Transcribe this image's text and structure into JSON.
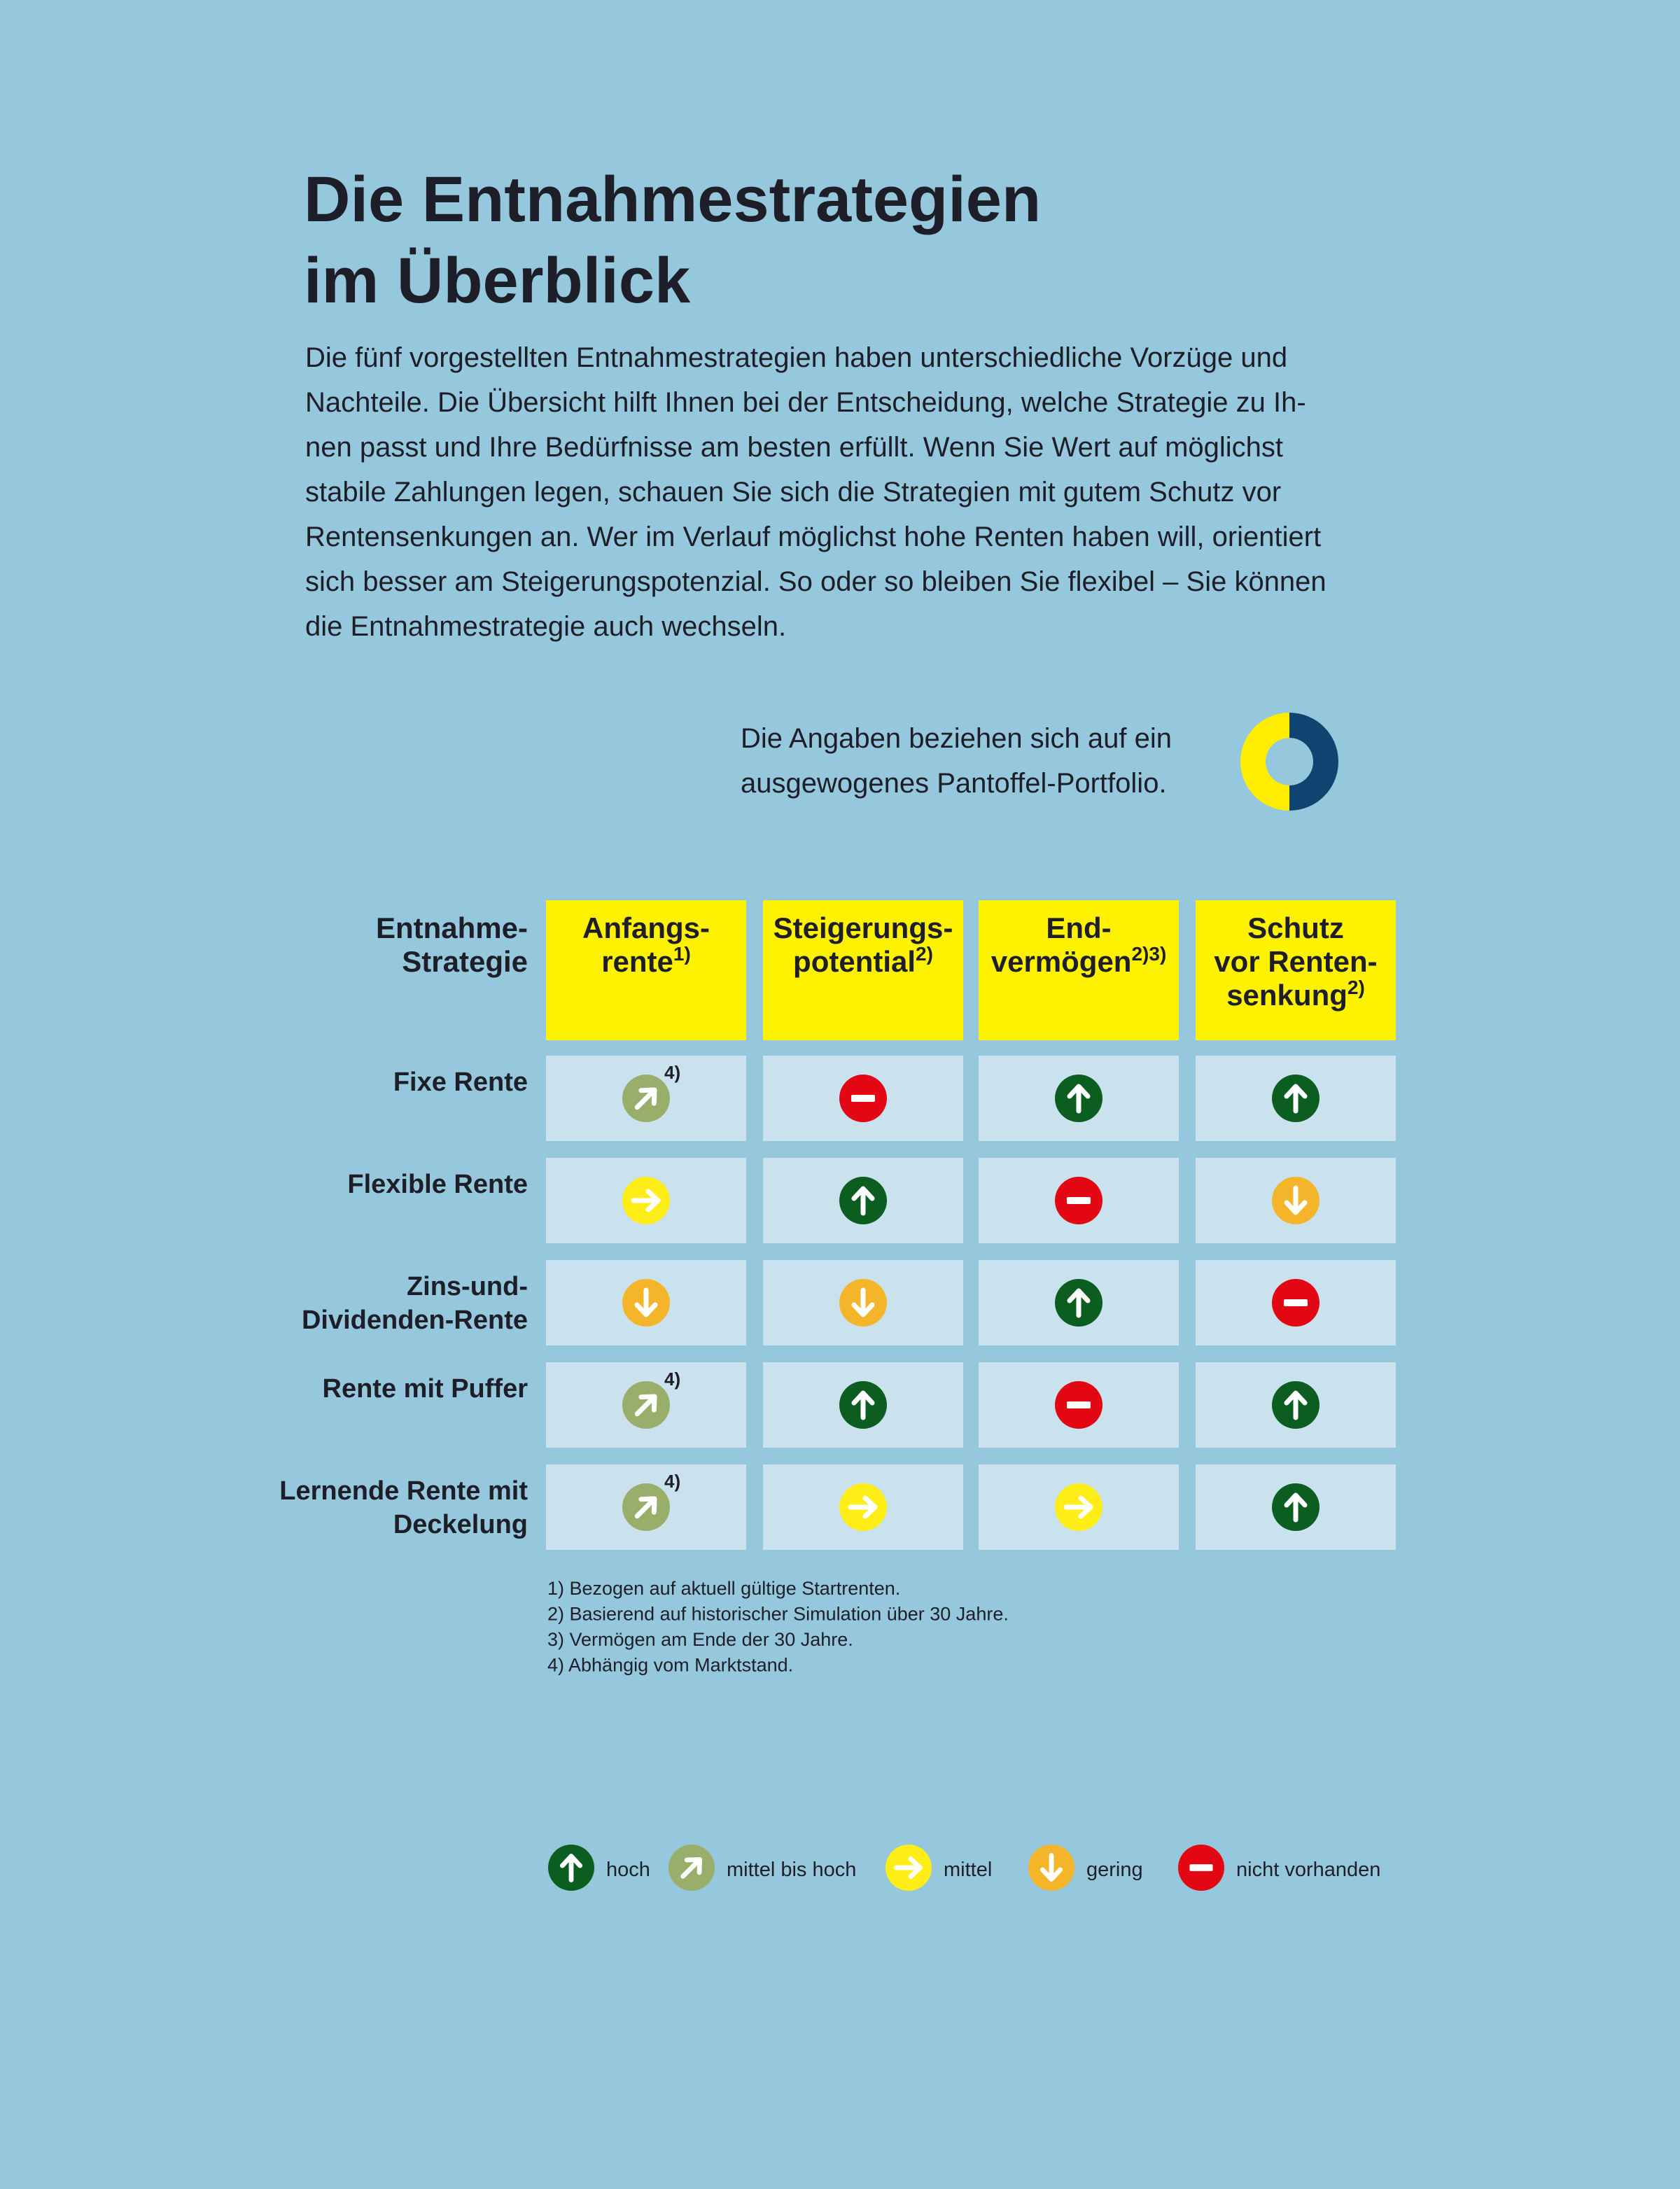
{
  "header": {
    "title": [
      "Die Entnahmestrategien",
      "im Überblick"
    ],
    "paragraph": [
      "Die fünf vorgestellten Entnahmestrategien haben unterschiedliche Vorzüge und",
      "Nachteile. Die Übersicht hilft Ihnen bei der Entscheidung, welche Strategie zu Ih-",
      "nen passt und Ihre Bedürfnisse am besten erfüllt. Wenn Sie Wert auf möglichst",
      "stabile Zahlungen legen, schauen Sie sich die Strategien mit gutem Schutz vor",
      "Rentensenkungen an. Wer im Verlauf möglichst hohe Renten haben will, orientiert",
      "sich besser am Steigerungspotenzial. So oder so bleiben Sie flexibel – Sie können",
      "die Entnahmestrategie auch wechseln."
    ],
    "note": [
      "Die Angaben beziehen sich auf ein",
      "ausgewogenes Pantoffel-Portfolio."
    ]
  },
  "table": {
    "corner": [
      "Entnahme-",
      "Strategie"
    ],
    "columns": [
      {
        "lines": [
          "Anfangs-",
          "rente"
        ],
        "sup": "1)"
      },
      {
        "lines": [
          "Steigerungs-",
          "potential"
        ],
        "sup": "2)"
      },
      {
        "lines": [
          "End-",
          "vermögen"
        ],
        "sup": "2)3)"
      },
      {
        "lines": [
          "Schutz",
          "vor Renten-",
          "senkung"
        ],
        "sup": "2)"
      }
    ],
    "rows": [
      {
        "label": [
          "Fixe Rente"
        ],
        "cells": [
          {
            "rating": "mittel bis hoch",
            "note": "4)"
          },
          {
            "rating": "nicht vorhanden"
          },
          {
            "rating": "hoch"
          },
          {
            "rating": "hoch"
          }
        ]
      },
      {
        "label": [
          "Flexible Rente"
        ],
        "cells": [
          {
            "rating": "mittel"
          },
          {
            "rating": "hoch"
          },
          {
            "rating": "nicht vorhanden"
          },
          {
            "rating": "gering"
          }
        ]
      },
      {
        "label": [
          "Zins-und-",
          "Dividenden-Rente"
        ],
        "cells": [
          {
            "rating": "gering"
          },
          {
            "rating": "gering"
          },
          {
            "rating": "hoch"
          },
          {
            "rating": "nicht vorhanden"
          }
        ]
      },
      {
        "label": [
          "Rente mit Puffer"
        ],
        "cells": [
          {
            "rating": "mittel bis hoch",
            "note": "4)"
          },
          {
            "rating": "hoch"
          },
          {
            "rating": "nicht vorhanden"
          },
          {
            "rating": "hoch"
          }
        ]
      },
      {
        "label": [
          "Lernende Rente mit",
          "Deckelung"
        ],
        "cells": [
          {
            "rating": "mittel bis hoch",
            "note": "4)"
          },
          {
            "rating": "mittel"
          },
          {
            "rating": "mittel"
          },
          {
            "rating": "hoch"
          }
        ]
      }
    ],
    "footnotes": [
      "1) Bezogen auf aktuell gültige Startrenten.",
      "2) Basierend auf historischer Simulation über 30 Jahre.",
      "3) Vermögen am Ende der 30 Jahre.",
      "4) Abhängig vom Marktstand."
    ]
  },
  "legend": [
    "hoch",
    "mittel bis hoch",
    "mittel",
    "gering",
    "nicht vorhanden"
  ]
}
